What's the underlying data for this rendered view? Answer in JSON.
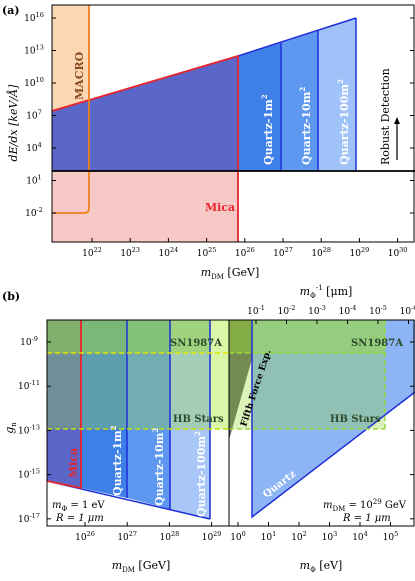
{
  "panel_a": {
    "tag": "(a)",
    "ylabel": "dE/dx [keV/Å]",
    "xlabel": "m",
    "xlabel_sub": "DM",
    "xlabel_unit": " [GeV]",
    "x_ticks": [
      "10",
      "10",
      "10",
      "10",
      "10",
      "10",
      "10",
      "10",
      "10"
    ],
    "x_tick_exps": [
      "22",
      "23",
      "24",
      "25",
      "26",
      "27",
      "28",
      "29",
      "30"
    ],
    "y_ticks": [
      "10",
      "10",
      "10",
      "10",
      "10",
      "10",
      "10"
    ],
    "y_tick_exps": [
      "-2",
      "1",
      "4",
      "7",
      "10",
      "13",
      "16"
    ],
    "labels": {
      "macro": "MACRO",
      "mica": "Mica",
      "q1": "Quartz-1m",
      "q10": "Quartz-10m",
      "q100": "Quartz-100m",
      "sup": "2",
      "robust": "Robust Detection"
    },
    "colors": {
      "macro": "#f8b47a",
      "mica": "#e8242c",
      "blue": "#5a66c8"
    }
  },
  "panel_b": {
    "tag": "(b)",
    "ylabel": "g",
    "ylabel_sub": "n",
    "y_ticks": [
      "10",
      "10",
      "10",
      "10",
      "10"
    ],
    "y_tick_exps": [
      "-9",
      "-11",
      "-13",
      "-15",
      "-17"
    ],
    "left": {
      "x_ticks": [
        "10",
        "10",
        "10",
        "10"
      ],
      "x_tick_exps": [
        "26",
        "27",
        "28",
        "29"
      ],
      "xlabel": "m",
      "xlabel_sub": "DM",
      "xlabel_unit": " [GeV]",
      "labels": {
        "mica": "Mica",
        "q1": "Quartz-1m",
        "q10": "Quartz-10m",
        "q100": "Quartz-100m",
        "sup": "2",
        "sn": "SN1987A",
        "hb": "HB Stars",
        "cond1": "m",
        "cond1_sub": "Φ",
        "cond1_val": " = 1 eV",
        "cond2": "R = 1 μm"
      }
    },
    "right": {
      "x_ticks": [
        "10",
        "10",
        "10",
        "10",
        "10",
        "10"
      ],
      "x_tick_exps": [
        "0",
        "1",
        "2",
        "3",
        "4",
        "5"
      ],
      "xlabel": "m",
      "xlabel_sub": "Φ",
      "xlabel_unit": " [eV]",
      "top_ticks": [
        "10",
        "10",
        "10",
        "10",
        "10",
        "10"
      ],
      "top_tick_exps": [
        "-1",
        "-2",
        "-3",
        "-4",
        "-5",
        "-6"
      ],
      "top_label": "m",
      "top_label_sub": "Φ",
      "top_label_sup": "-1",
      "top_label_unit": " [μm]",
      "labels": {
        "fifth": "Fifth Force Exp.",
        "sn": "SN1987A",
        "hb": "HB Stars",
        "quartz": "Quartz",
        "cond1": "m",
        "cond1_sub": "DM",
        "cond1_val": " = 10",
        "cond1_exp": "29",
        "cond1_unit": " GeV",
        "cond2": "R = 1 μm"
      }
    }
  }
}
